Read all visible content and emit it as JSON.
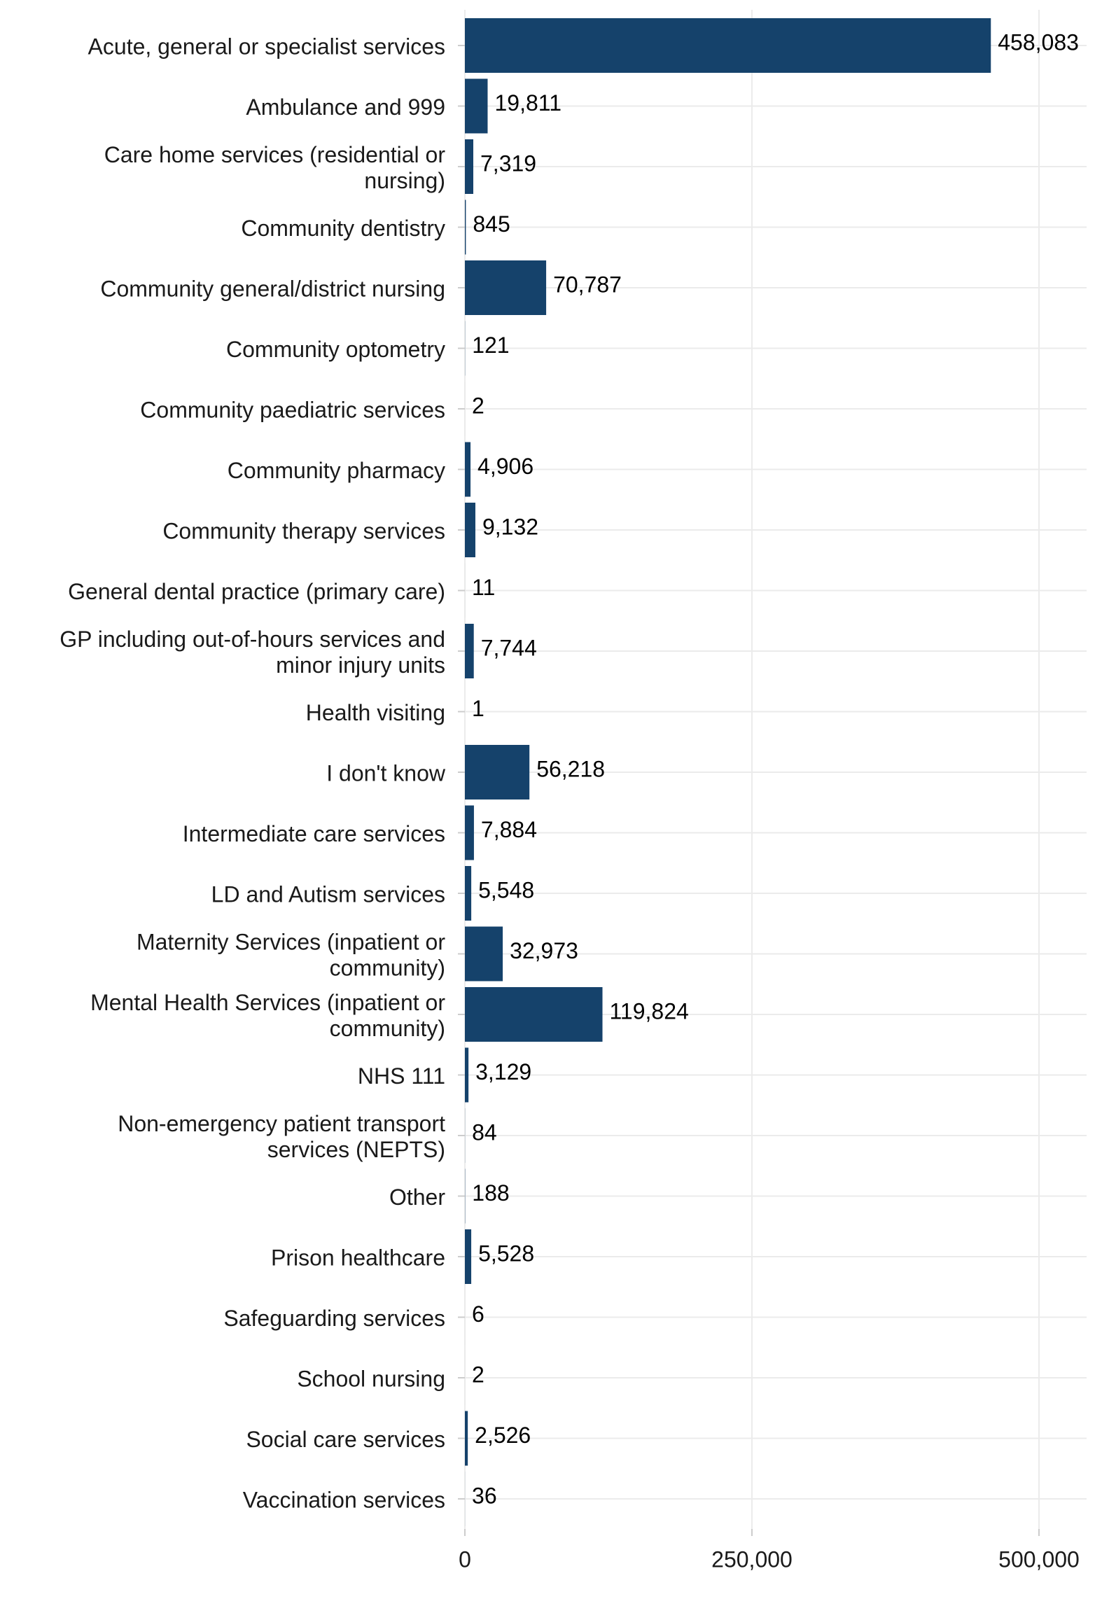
{
  "chart_data": {
    "type": "bar",
    "orientation": "horizontal",
    "title": "",
    "xlabel": "",
    "ylabel": "",
    "categories": [
      "Acute, general or specialist services",
      "Ambulance and 999",
      "Care home services (residential or nursing)",
      "Community dentistry",
      "Community general/district nursing",
      "Community optometry",
      "Community paediatric services",
      "Community pharmacy",
      "Community therapy services",
      "General dental practice (primary care)",
      "GP including out-of-hours services and minor injury units",
      "Health visiting",
      "I don't know",
      "Intermediate care services",
      "LD and Autism services",
      "Maternity Services (inpatient or community)",
      "Mental Health Services (inpatient or community)",
      "NHS 111",
      "Non-emergency patient transport services (NEPTS)",
      "Other",
      "Prison healthcare",
      "Safeguarding services",
      "School nursing",
      "Social care services",
      "Vaccination services"
    ],
    "category_lines": [
      [
        "Acute, general or specialist services"
      ],
      [
        "Ambulance and 999"
      ],
      [
        "Care home services (residential or",
        "nursing)"
      ],
      [
        "Community dentistry"
      ],
      [
        "Community general/district nursing"
      ],
      [
        "Community optometry"
      ],
      [
        "Community paediatric services"
      ],
      [
        "Community pharmacy"
      ],
      [
        "Community therapy services"
      ],
      [
        "General dental practice (primary care)"
      ],
      [
        "GP including out-of-hours services and",
        "minor injury units"
      ],
      [
        "Health visiting"
      ],
      [
        "I don't know"
      ],
      [
        "Intermediate care services"
      ],
      [
        "LD and Autism services"
      ],
      [
        "Maternity Services (inpatient or",
        "community)"
      ],
      [
        "Mental Health Services (inpatient or",
        "community)"
      ],
      [
        "NHS 111"
      ],
      [
        "Non-emergency patient transport",
        "services (NEPTS)"
      ],
      [
        "Other"
      ],
      [
        "Prison healthcare"
      ],
      [
        "Safeguarding services"
      ],
      [
        "School nursing"
      ],
      [
        "Social care services"
      ],
      [
        "Vaccination services"
      ]
    ],
    "values": [
      458083,
      19811,
      7319,
      845,
      70787,
      121,
      2,
      4906,
      9132,
      11,
      7744,
      1,
      56218,
      7884,
      5548,
      32973,
      119824,
      3129,
      84,
      188,
      5528,
      6,
      2,
      2526,
      36
    ],
    "value_labels": [
      "458,083",
      "19,811",
      "7,319",
      "845",
      "70,787",
      "121",
      "2",
      "4,906",
      "9,132",
      "11",
      "7,744",
      "1",
      "56,218",
      "7,884",
      "5,548",
      "32,973",
      "119,824",
      "3,129",
      "84",
      "188",
      "5,528",
      "6",
      "2",
      "2,526",
      "36"
    ],
    "xlim": [
      0,
      540000
    ],
    "xticks": [
      0,
      250000,
      500000
    ],
    "xtick_labels": [
      "0",
      "250,000",
      "500,000"
    ],
    "bar_color": "#15426b",
    "grid": true,
    "grid_color": "#ebebeb",
    "legend": "none"
  }
}
